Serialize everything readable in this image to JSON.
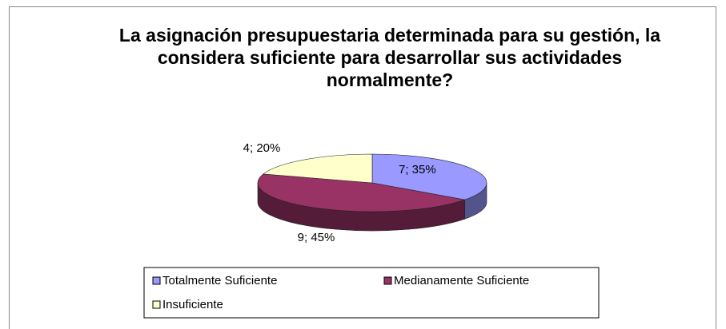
{
  "chart_data": {
    "type": "pie",
    "title": "La asignación presupuestaria determinada para su gestión, la considera suficiente para desarrollar sus actividades normalmente?",
    "categories": [
      "Totalmente Suficiente",
      "Medianamente Suficiente",
      "Insuficiente"
    ],
    "values": [
      7,
      9,
      4
    ],
    "value_labels": [
      "7; 35%",
      "9; 45%",
      "4; 20%"
    ],
    "colors": [
      "#9999ff",
      "#993366",
      "#ffffcc"
    ],
    "legend": "bottom"
  }
}
